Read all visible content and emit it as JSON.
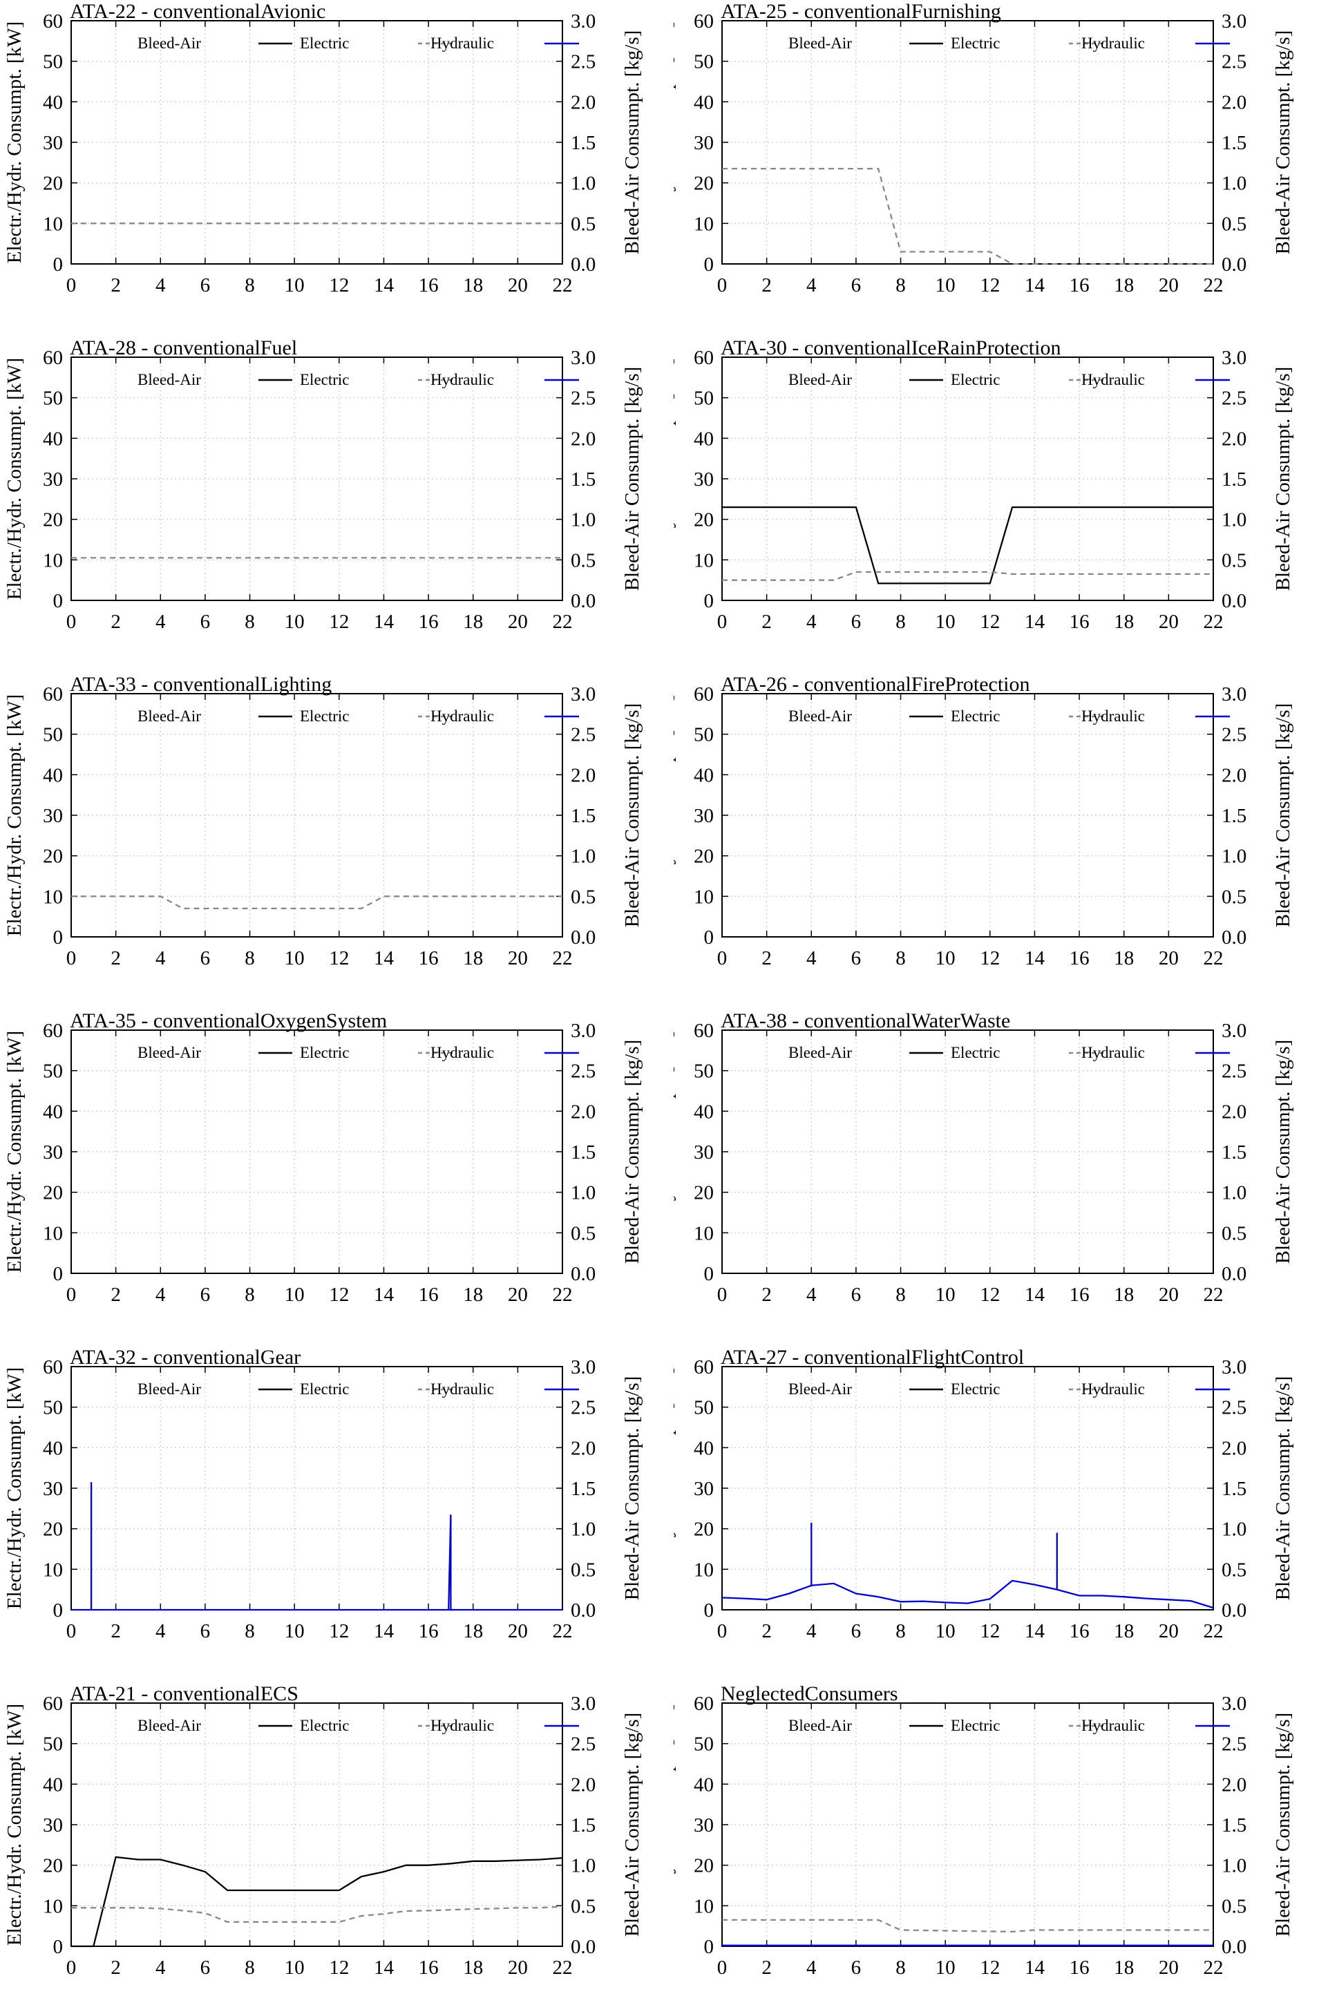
{
  "shared": {
    "y_left_label": "Electr./Hydr. Consumpt. [kW]",
    "y_right_label": "Bleed-Air Consumpt. [kg/s]",
    "x_ticks": [
      "0",
      "2",
      "4",
      "6",
      "8",
      "10",
      "12",
      "14",
      "16",
      "18",
      "20",
      "22"
    ],
    "y_left_ticks": [
      "0",
      "10",
      "20",
      "30",
      "40",
      "50",
      "60"
    ],
    "y_right_ticks": [
      "0.0",
      "0.5",
      "1.0",
      "1.5",
      "2.0",
      "2.5",
      "3.0"
    ],
    "legend": {
      "bleed": "Bleed-Air",
      "electric": "Electric",
      "hydraulic": "Hydraulic"
    },
    "colors": {
      "bleed": "#000000",
      "electric": "#888888",
      "hydraulic": "#0000cc",
      "grid": "#c8c8c8"
    }
  },
  "chart_data": [
    {
      "type": "line",
      "title": "ATA-22 - conventionalAvionic",
      "xlim": [
        0,
        22
      ],
      "ylim": [
        0,
        60
      ],
      "y2lim": [
        0,
        3
      ],
      "series": [
        {
          "name": "Electric",
          "x": [
            0,
            22
          ],
          "y": [
            10,
            10
          ]
        }
      ]
    },
    {
      "type": "line",
      "title": "ATA-25 - conventionalFurnishing",
      "xlim": [
        0,
        22
      ],
      "ylim": [
        0,
        60
      ],
      "y2lim": [
        0,
        3
      ],
      "series": [
        {
          "name": "Electric",
          "x": [
            0,
            7,
            8,
            12,
            13,
            22
          ],
          "y": [
            23.5,
            23.5,
            3,
            3,
            0,
            0
          ]
        }
      ]
    },
    {
      "type": "line",
      "title": "ATA-28 - conventionalFuel",
      "xlim": [
        0,
        22
      ],
      "ylim": [
        0,
        60
      ],
      "y2lim": [
        0,
        3
      ],
      "series": [
        {
          "name": "Electric",
          "x": [
            0,
            22
          ],
          "y": [
            10.5,
            10.5
          ]
        }
      ]
    },
    {
      "type": "line",
      "title": "ATA-30 - conventionalIceRainProtection",
      "xlim": [
        0,
        22
      ],
      "ylim": [
        0,
        60
      ],
      "y2lim": [
        0,
        3
      ],
      "series": [
        {
          "name": "Bleed-Air",
          "axis": "right",
          "x": [
            0,
            6,
            7,
            12,
            13,
            22
          ],
          "y": [
            1.15,
            1.15,
            0.21,
            0.21,
            1.15,
            1.15
          ]
        },
        {
          "name": "Electric",
          "x": [
            0,
            5,
            6,
            12,
            13,
            22
          ],
          "y": [
            5,
            5,
            7,
            7,
            6.5,
            6.5
          ]
        }
      ]
    },
    {
      "type": "line",
      "title": "ATA-33 - conventionalLighting",
      "xlim": [
        0,
        22
      ],
      "ylim": [
        0,
        60
      ],
      "y2lim": [
        0,
        3
      ],
      "series": [
        {
          "name": "Electric",
          "x": [
            0,
            4,
            5,
            13,
            14,
            22
          ],
          "y": [
            10,
            10,
            7,
            7,
            10,
            10
          ]
        }
      ]
    },
    {
      "type": "line",
      "title": "ATA-26 - conventionalFireProtection",
      "xlim": [
        0,
        22
      ],
      "ylim": [
        0,
        60
      ],
      "y2lim": [
        0,
        3
      ],
      "series": []
    },
    {
      "type": "line",
      "title": "ATA-35 - conventionalOxygenSystem",
      "xlim": [
        0,
        22
      ],
      "ylim": [
        0,
        60
      ],
      "y2lim": [
        0,
        3
      ],
      "series": []
    },
    {
      "type": "line",
      "title": "ATA-38 - conventionalWaterWaste",
      "xlim": [
        0,
        22
      ],
      "ylim": [
        0,
        60
      ],
      "y2lim": [
        0,
        3
      ],
      "series": []
    },
    {
      "type": "line",
      "title": "ATA-32 - conventionalGear",
      "xlim": [
        0,
        22
      ],
      "ylim": [
        0,
        60
      ],
      "y2lim": [
        0,
        3
      ],
      "series": [
        {
          "name": "Hydraulic",
          "x": [
            0,
            0.9,
            0.9,
            0.9,
            0.9,
            22
          ],
          "y": [
            0,
            0,
            31.5,
            31.5,
            0,
            0
          ]
        },
        {
          "name": "Hydraulic",
          "x": [
            16.9,
            17,
            17,
            17.1
          ],
          "y": [
            0,
            23.5,
            0,
            0
          ]
        }
      ]
    },
    {
      "type": "line",
      "title": "ATA-27 - conventionalFlightControl",
      "xlim": [
        0,
        22
      ],
      "ylim": [
        0,
        60
      ],
      "y2lim": [
        0,
        3
      ],
      "series": [
        {
          "name": "Hydraulic",
          "x": [
            0,
            1,
            2,
            3,
            4,
            4,
            4,
            5,
            6,
            7,
            8,
            9,
            10,
            11,
            12,
            13,
            14,
            15,
            15,
            15,
            16,
            17,
            18,
            19,
            20,
            21,
            22
          ],
          "y": [
            3,
            2.8,
            2.5,
            4,
            6,
            21.5,
            6,
            6.5,
            4,
            3.2,
            2,
            2.1,
            1.8,
            1.6,
            2.7,
            7.2,
            6.2,
            5,
            19,
            5,
            3.5,
            3.5,
            3.2,
            2.8,
            2.5,
            2.2,
            0.5
          ]
        }
      ]
    },
    {
      "type": "line",
      "title": "ATA-21 - conventionalECS",
      "xlim": [
        0,
        22
      ],
      "ylim": [
        0,
        60
      ],
      "y2lim": [
        0,
        3
      ],
      "series": [
        {
          "name": "Bleed-Air",
          "axis": "right",
          "x": [
            0,
            1,
            2,
            3,
            4,
            5,
            6,
            7,
            8,
            9,
            10,
            11,
            12,
            13,
            14,
            15,
            16,
            17,
            18,
            19,
            20,
            21,
            22
          ],
          "y": [
            0,
            0,
            1.1,
            1.07,
            1.07,
            1.0,
            0.92,
            0.69,
            0.69,
            0.69,
            0.69,
            0.69,
            0.69,
            0.86,
            0.92,
            1.0,
            1.0,
            1.02,
            1.05,
            1.05,
            1.06,
            1.07,
            1.09
          ]
        },
        {
          "name": "Electric",
          "x": [
            0,
            1,
            2,
            3,
            4,
            5,
            6,
            7,
            8,
            9,
            10,
            11,
            12,
            13,
            14,
            15,
            16,
            17,
            18,
            19,
            20,
            21,
            22
          ],
          "y": [
            9.5,
            9.5,
            9.5,
            9.5,
            9.3,
            8.8,
            8.2,
            6,
            6,
            6,
            6,
            6,
            6,
            7.5,
            8,
            8.7,
            8.8,
            9,
            9.2,
            9.3,
            9.5,
            9.5,
            9.8
          ]
        }
      ]
    },
    {
      "type": "line",
      "title": "NeglectedConsumers",
      "xlim": [
        0,
        22
      ],
      "ylim": [
        0,
        60
      ],
      "y2lim": [
        0,
        3
      ],
      "series": [
        {
          "name": "Electric",
          "x": [
            0,
            7,
            8,
            13,
            14,
            22
          ],
          "y": [
            6.5,
            6.5,
            4,
            3.6,
            4,
            4
          ]
        },
        {
          "name": "Hydraulic",
          "x": [
            0,
            22
          ],
          "y": [
            0.2,
            0.2
          ]
        }
      ]
    }
  ]
}
